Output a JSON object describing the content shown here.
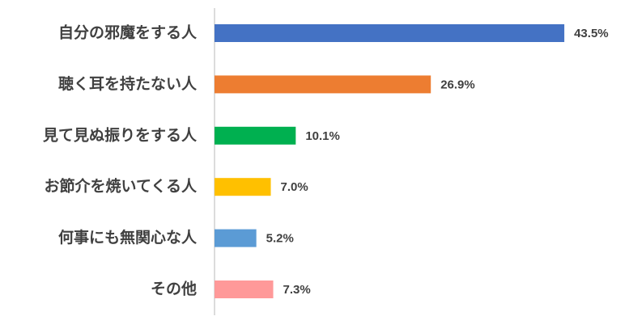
{
  "chart_data": {
    "type": "bar",
    "orientation": "horizontal",
    "categories": [
      "自分の邪魔をする人",
      "聴く耳を持たない人",
      "見て見ぬ振りをする人",
      "お節介を焼いてくる人",
      "何事にも無関心な人",
      "その他"
    ],
    "values": [
      43.5,
      26.9,
      10.1,
      7.0,
      5.2,
      7.3
    ],
    "value_labels": [
      "43.5%",
      "26.9%",
      "10.1%",
      "7.0%",
      "5.2%",
      "7.3%"
    ],
    "colors": [
      "#4472c4",
      "#ed7d31",
      "#00b050",
      "#ffc000",
      "#5b9bd5",
      "#ff9999"
    ],
    "xlim": [
      0,
      45
    ]
  }
}
